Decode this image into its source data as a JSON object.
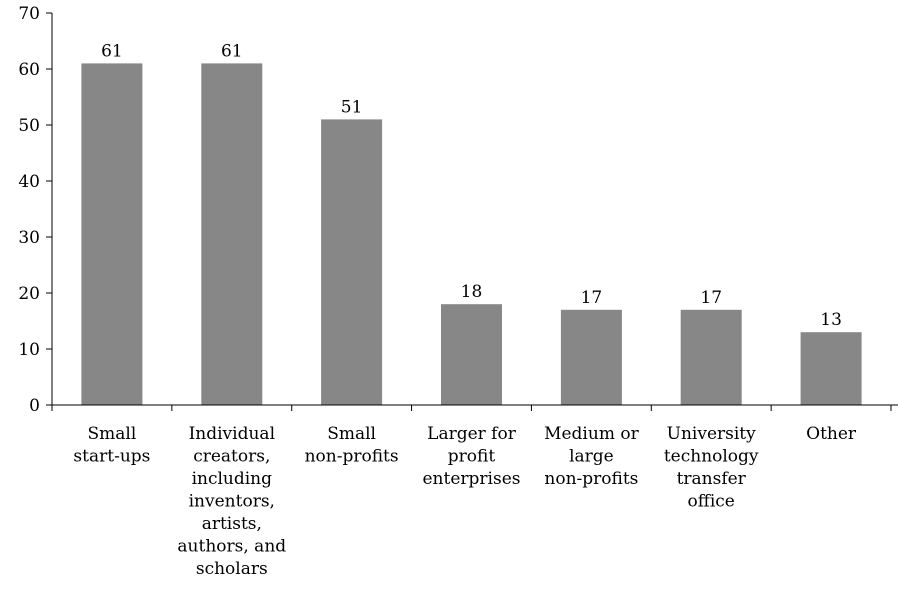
{
  "chart_data": {
    "type": "bar",
    "title": "",
    "xlabel": "",
    "ylabel": "",
    "ylim": [
      0,
      70
    ],
    "yticks": [
      0,
      10,
      20,
      30,
      40,
      50,
      60,
      70
    ],
    "grid": false,
    "legend": "none",
    "categories": [
      [
        "Small",
        "start-ups"
      ],
      [
        "Individual",
        "creators,",
        "including",
        "inventors,",
        "artists,",
        "authors, and",
        "scholars"
      ],
      [
        "Small",
        "non-profits"
      ],
      [
        "Larger for",
        "profit",
        "enterprises"
      ],
      [
        "Medium or",
        "large",
        "non-profits"
      ],
      [
        "University",
        "technology",
        "transfer",
        "office"
      ],
      [
        "Other"
      ]
    ],
    "values": [
      61,
      61,
      51,
      18,
      17,
      17,
      13
    ],
    "data_labels": [
      "61",
      "61",
      "51",
      "18",
      "17",
      "17",
      "13"
    ],
    "bar_color": "#878787",
    "axis_color": "#000000"
  }
}
